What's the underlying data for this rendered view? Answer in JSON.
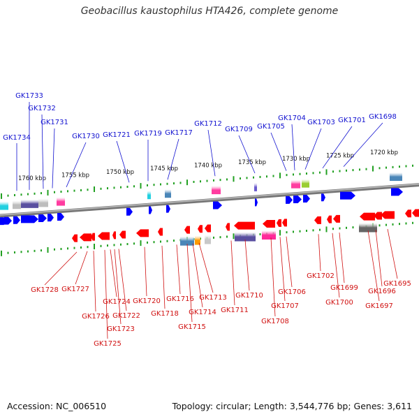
{
  "title": "Geobacillus kaustophilus HTA426, complete genome",
  "accession_text": "Accession: NC_006510",
  "summary_text": "Topology: circular; Length: 3,544,776 bp; Genes: 3,611",
  "colors": {
    "forward": "#0000ff",
    "reverse": "#ff0000",
    "backbone": "#8a8a8a",
    "tick": "#22a022",
    "forward_label": "#1010d0",
    "reverse_label": "#d01010"
  },
  "scale": {
    "labels": [
      "1760 kbp",
      "1755 kbp",
      "1750 kbp",
      "1745 kbp",
      "1740 kbp",
      "1735 kbp",
      "1730 kbp",
      "1725 kbp",
      "1720 kbp"
    ]
  },
  "forward_labels": [
    "GK1734",
    "GK1733",
    "GK1732",
    "GK1731",
    "GK1730",
    "GK1721",
    "GK1719",
    "GK1717",
    "GK1712",
    "GK1709",
    "GK1705",
    "GK1704",
    "GK1703",
    "GK1701",
    "GK1698"
  ],
  "reverse_labels": [
    "GK1728",
    "GK1727",
    "GK1726",
    "GK1725",
    "GK1724",
    "GK1723",
    "GK1722",
    "GK1720",
    "GK1718",
    "GK1716",
    "GK1715",
    "GK1714",
    "GK1713",
    "GK1711",
    "GK1710",
    "GK1708",
    "GK1707",
    "GK1706",
    "GK1702",
    "GK1700",
    "GK1699",
    "GK1697",
    "GK1696",
    "GK1695"
  ]
}
